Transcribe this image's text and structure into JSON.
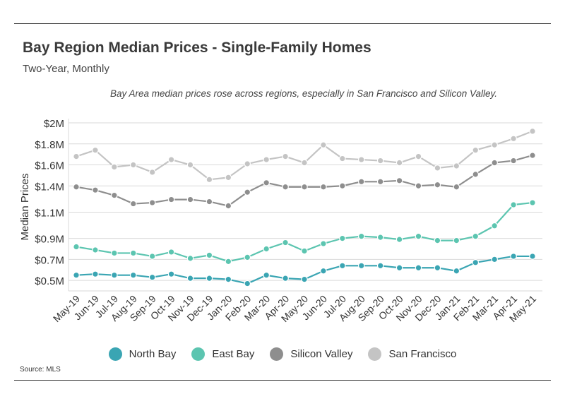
{
  "header": {
    "title": "Bay Region Median Prices - Single-Family Homes",
    "subtitle": "Two-Year, Monthly",
    "annotation": "Bay Area median prices rose across regions, especially in San Francisco and Silicon Valley."
  },
  "footer": {
    "source": "Source:  MLS"
  },
  "chart_data": {
    "type": "line",
    "title": "Bay Region Median Prices - Single-Family Homes",
    "subtitle": "Two-Year, Monthly",
    "xlabel": "",
    "ylabel": "Median Prices",
    "y_ticks": [
      {
        "label": "$2M",
        "value": 2.0
      },
      {
        "label": "$1.8M",
        "value": 1.8
      },
      {
        "label": "$1.6M",
        "value": 1.6
      },
      {
        "label": "$1.4M",
        "value": 1.4
      },
      {
        "label": "$1.1M",
        "value": 1.15
      },
      {
        "label": "$0.9M",
        "value": 0.9
      },
      {
        "label": "$0.7M",
        "value": 0.7
      },
      {
        "label": "$0.5M",
        "value": 0.5
      }
    ],
    "ylim": [
      0.4,
      2.0
    ],
    "grid": true,
    "legend_position": "bottom",
    "categories": [
      "May-19",
      "Jun-19",
      "Jul-19",
      "Aug-19",
      "Sep-19",
      "Oct-19",
      "Nov-19",
      "Dec-19",
      "Jan-20",
      "Feb-20",
      "Mar-20",
      "Apr-20",
      "May-20",
      "Jun-20",
      "Jul-20",
      "Aug-20",
      "Sep-20",
      "Oct-20",
      "Nov-20",
      "Dec-20",
      "Jan-21",
      "Feb-21",
      "Mar-21",
      "Apr-21",
      "May-21"
    ],
    "series": [
      {
        "name": "North Bay",
        "color": "#3aa5b3",
        "values": [
          0.55,
          0.56,
          0.55,
          0.55,
          0.53,
          0.56,
          0.52,
          0.52,
          0.51,
          0.47,
          0.55,
          0.52,
          0.51,
          0.59,
          0.64,
          0.64,
          0.64,
          0.62,
          0.62,
          0.62,
          0.59,
          0.67,
          0.7,
          0.73,
          0.73
        ]
      },
      {
        "name": "East Bay",
        "color": "#5cc5b0",
        "values": [
          0.82,
          0.79,
          0.76,
          0.76,
          0.73,
          0.77,
          0.71,
          0.74,
          0.68,
          0.72,
          0.8,
          0.86,
          0.78,
          0.85,
          0.9,
          0.92,
          0.91,
          0.89,
          0.92,
          0.88,
          0.88,
          0.92,
          1.02,
          1.22,
          1.24
        ]
      },
      {
        "name": "Silicon Valley",
        "color": "#8e8e8e",
        "values": [
          1.39,
          1.36,
          1.31,
          1.23,
          1.24,
          1.27,
          1.27,
          1.25,
          1.21,
          1.34,
          1.43,
          1.39,
          1.39,
          1.39,
          1.4,
          1.44,
          1.44,
          1.45,
          1.4,
          1.41,
          1.39,
          1.51,
          1.62,
          1.64,
          1.69
        ]
      },
      {
        "name": "San Francisco",
        "color": "#c4c4c4",
        "values": [
          1.68,
          1.74,
          1.58,
          1.6,
          1.53,
          1.65,
          1.6,
          1.46,
          1.48,
          1.61,
          1.65,
          1.68,
          1.62,
          1.79,
          1.66,
          1.65,
          1.64,
          1.62,
          1.68,
          1.57,
          1.59,
          1.74,
          1.79,
          1.85,
          1.92
        ]
      }
    ]
  }
}
